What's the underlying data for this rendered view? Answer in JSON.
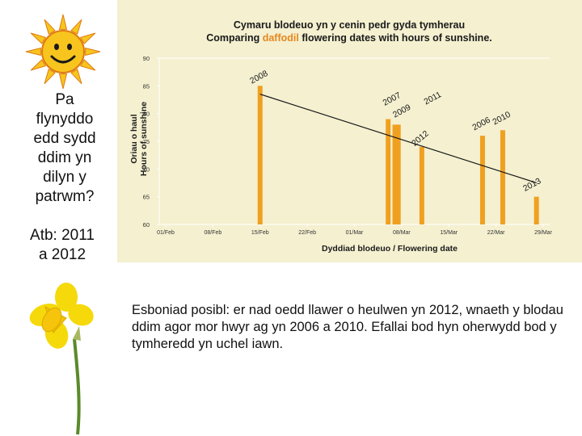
{
  "slide": {
    "question": "Pa\nflynyddo\nedd sydd\nddim yn\ndilyn y\npatrwm?",
    "answer": "Atb: 2011\na 2012",
    "explanation_lead": "Esboniad posibl",
    "explanation_body": ": er nad oedd llawer o heulwen yn 2012, wnaeth y blodau ddim agor mor hwyr ag yn 2006 a 2010. Efallai bod hyn oherwydd bod y tymheredd yn uchel iawn."
  },
  "colors": {
    "chart_background": "#f4f0d0",
    "bar": "#f0a020",
    "title_highlight": "#e8871e",
    "trend_line": "#1a1a1a",
    "sun": "#f7c51e",
    "sun_outline": "#e07b10",
    "daffodil": "#f5d90a"
  },
  "chart_data": {
    "type": "bar",
    "title_line1": "Cymaru blodeuo yn y cenin pedr gyda tymherau",
    "title_line2_prefix": "Comparing ",
    "title_line2_highlight": "daffodil",
    "title_line2_suffix": " flowering dates with hours of sunshine.",
    "ylabel_cy": "Oriau o haul",
    "ylabel_en": "Hours of sunshine",
    "xlabel": "Dyddiad blodeuo / Flowering date",
    "ylim": [
      60,
      90
    ],
    "yticks": [
      "90",
      "85",
      "80",
      "75",
      "70",
      "65",
      "60"
    ],
    "xticks": [
      "01/Feb",
      "08/Feb",
      "15/Feb",
      "22/Feb",
      "01/Mar",
      "08/Mar",
      "15/Mar",
      "22/Mar",
      "29/Mar"
    ],
    "xtick_day_offsets": [
      0,
      7,
      14,
      21,
      28,
      35,
      42,
      49,
      56
    ],
    "xlim_days": [
      0,
      56
    ],
    "series": [
      {
        "label": "2008",
        "day": 14,
        "value": 85
      },
      {
        "label": "2007",
        "day": 33,
        "value": 79
      },
      {
        "label": "2009",
        "day": 34,
        "value": 78
      },
      {
        "label": "2011",
        "day": 34.5,
        "value": 78
      },
      {
        "label": "2012",
        "day": 38,
        "value": 74
      },
      {
        "label": "2006",
        "day": 47,
        "value": 76
      },
      {
        "label": "2010",
        "day": 50,
        "value": 77
      },
      {
        "label": "2013",
        "day": 55,
        "value": 65
      }
    ],
    "trend_line": {
      "from": {
        "day": 14,
        "value": 83.5
      },
      "to": {
        "day": 55,
        "value": 67.5
      }
    },
    "grid": false
  }
}
